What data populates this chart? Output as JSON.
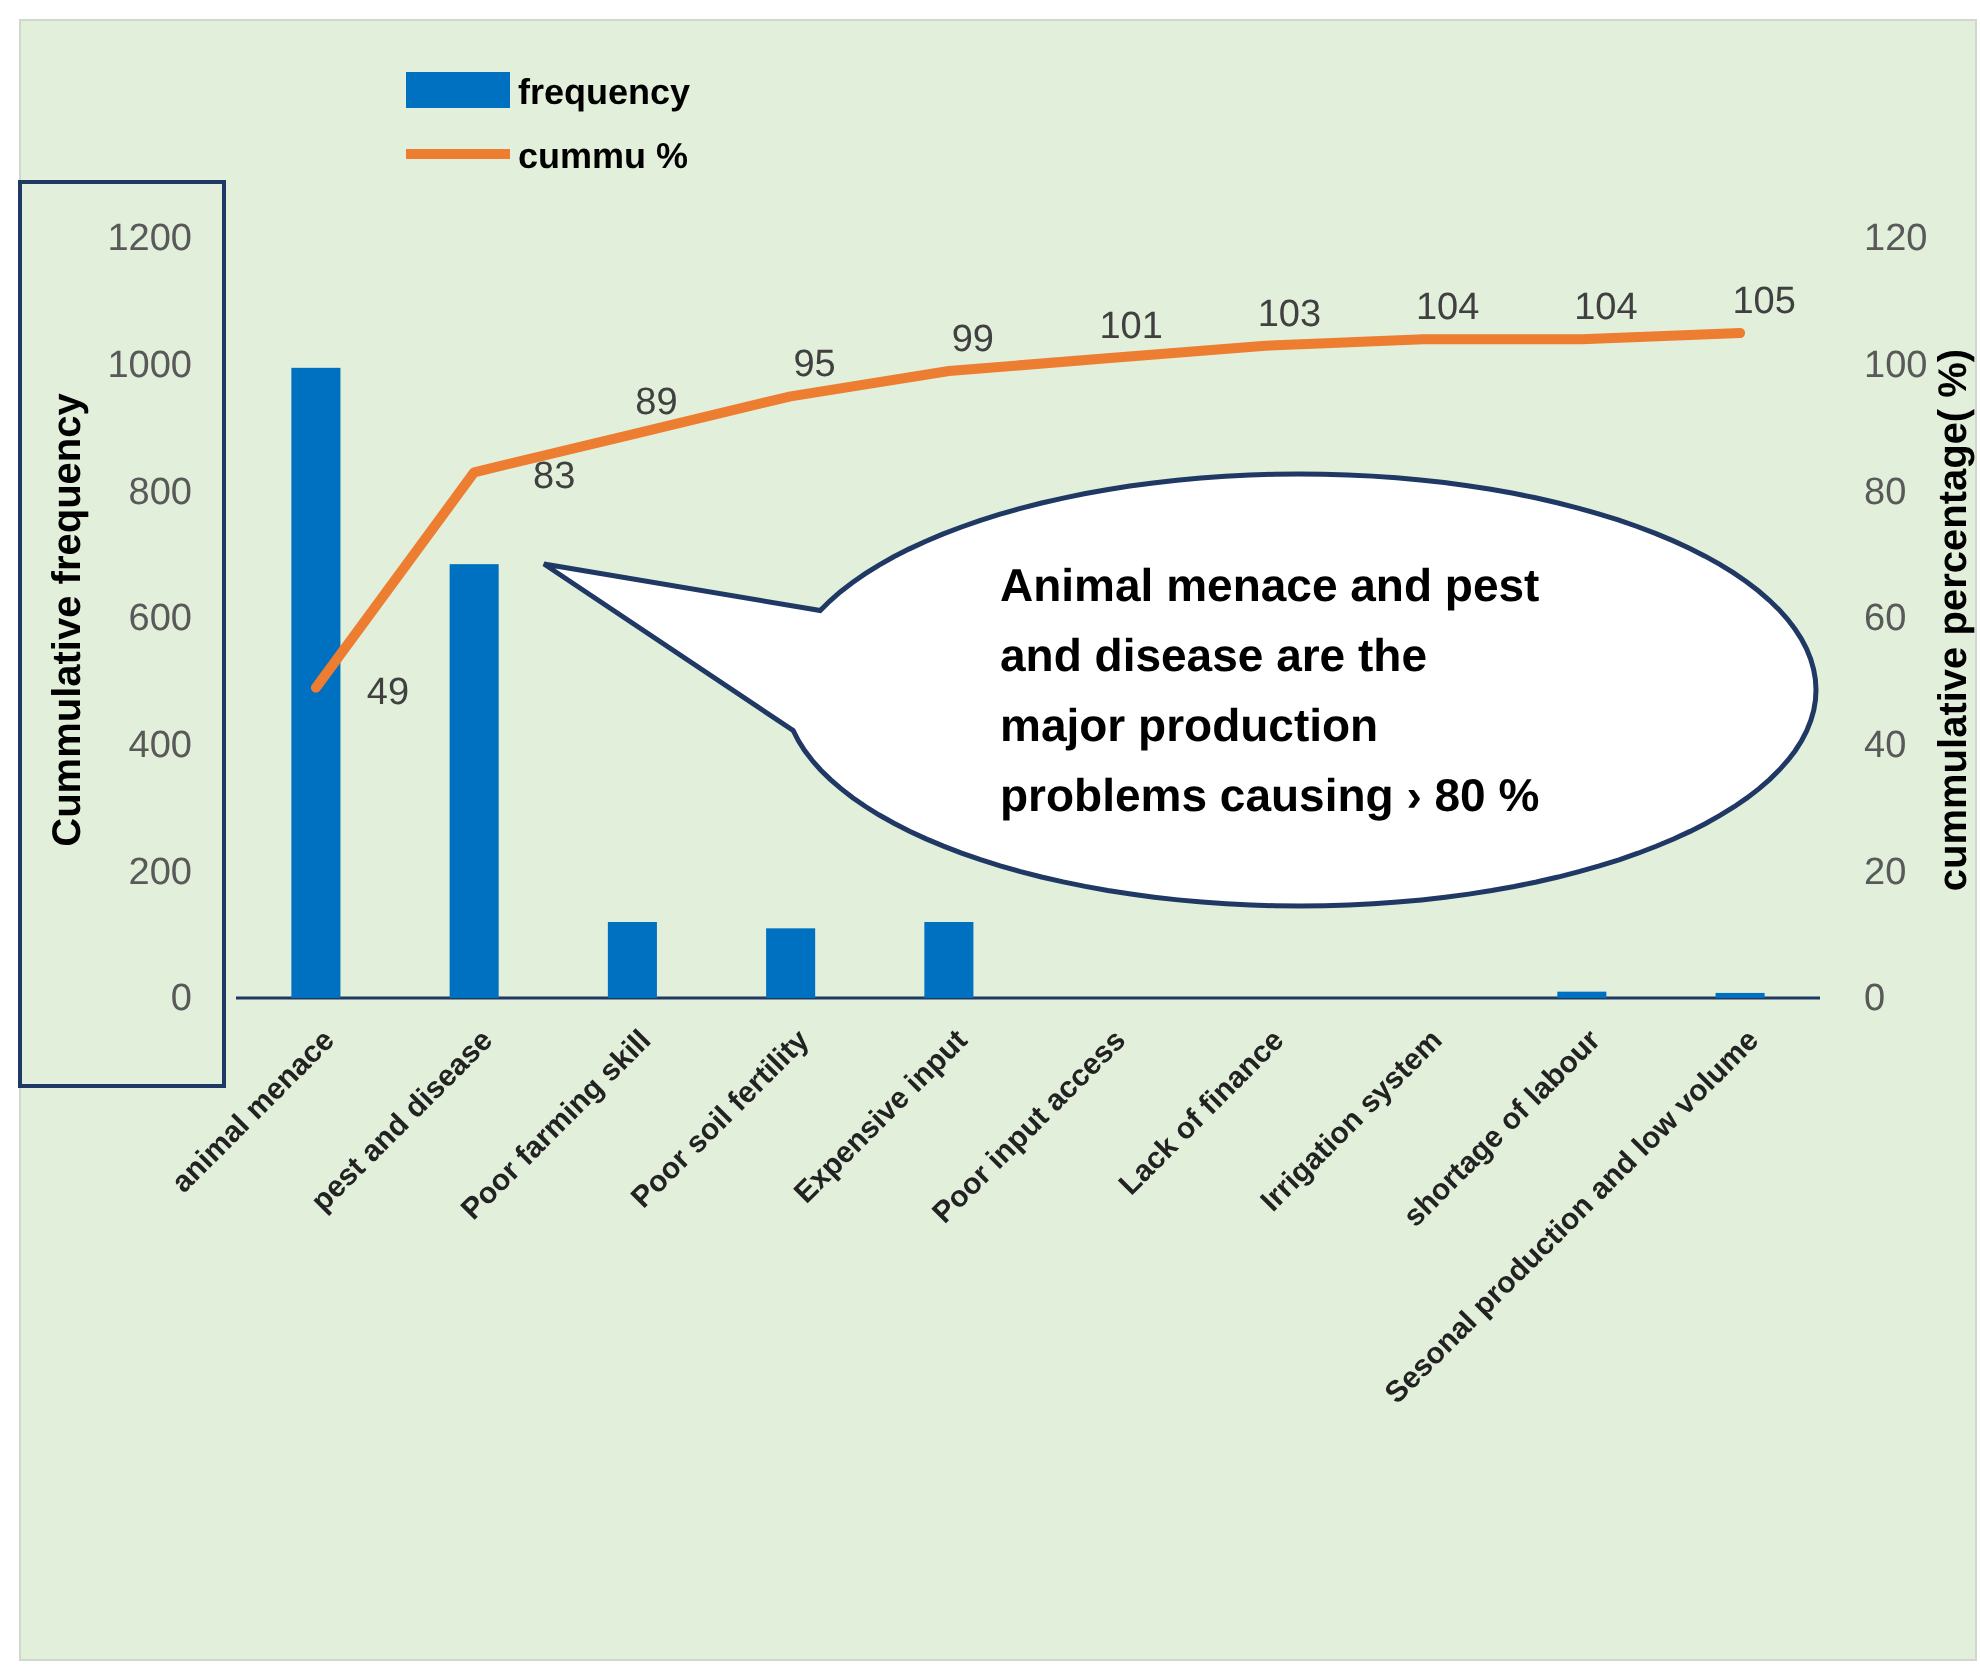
{
  "chart_data": {
    "type": "bar",
    "categories": [
      "animal menace",
      "pest and disease",
      "Poor farming skill",
      "Poor soil fertility",
      "Expensive input",
      "Poor input access",
      "Lack of finance",
      "Irrigation system",
      "shortage of labour",
      "Sesonal production and low volume"
    ],
    "series": [
      {
        "name": "frequency",
        "color": "#0070c0",
        "values": [
          995,
          685,
          120,
          110,
          120,
          null,
          null,
          null,
          10,
          8
        ]
      },
      {
        "name": "cummu %",
        "type": "line",
        "axis": "y2",
        "color": "#ed7d31",
        "values": [
          49,
          83,
          89,
          95,
          99,
          101,
          103,
          104,
          104,
          105
        ],
        "data_labels": true
      }
    ],
    "ylabel": "Cummulative frequency",
    "y2label": "cummulative percentage( %)",
    "ylim": [
      0,
      1200
    ],
    "yticks": [
      0,
      200,
      400,
      600,
      800,
      1000,
      1200
    ],
    "y2lim": [
      0,
      120
    ],
    "y2ticks": [
      0,
      20,
      40,
      60,
      80,
      100,
      120
    ],
    "grid": false,
    "legend": "top left",
    "marker": "none",
    "line_style": "solid",
    "annotations": [
      "Animal menace and pest and disease are the major production problems causing › 80 %"
    ]
  }
}
